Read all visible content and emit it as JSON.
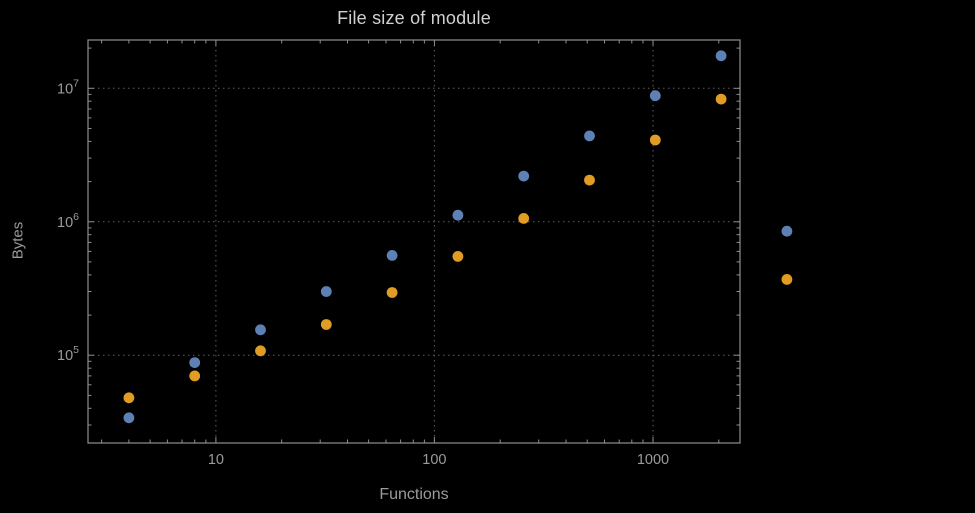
{
  "chart_data": {
    "type": "scatter",
    "title": "File size of module",
    "xlabel": "Functions",
    "ylabel": "Bytes",
    "x_scale": "log",
    "y_scale": "log",
    "xlim": [
      2.6,
      2500
    ],
    "ylim": [
      22000,
      23000000
    ],
    "x_ticks": [
      10,
      100,
      1000
    ],
    "x_tick_labels": [
      "10",
      "100",
      "1000"
    ],
    "y_ticks": [
      100000,
      1000000,
      10000000
    ],
    "y_tick_base": "10",
    "y_tick_exponents": [
      5,
      6,
      7
    ],
    "grid": true,
    "grid_style": "dotted",
    "legend": "none",
    "clip_points": false,
    "background": "#000000",
    "grid_color": "#5e5e5e",
    "frame_color": "#8f8f8f",
    "label_color": "#9b9b9b",
    "title_color": "#d0d0d0",
    "x": [
      4,
      8,
      16,
      32,
      64,
      128,
      256,
      512,
      1024,
      2048,
      4096
    ],
    "series": [
      {
        "name": "series-1-blue",
        "color": "#5e81b5",
        "values": [
          34000,
          88000,
          155000,
          300000,
          560000,
          1120000,
          2200000,
          4400000,
          8800000,
          17500000,
          850000
        ]
      },
      {
        "name": "series-2-orange",
        "color": "#e19c24",
        "values": [
          48000,
          70000,
          108000,
          170000,
          295000,
          550000,
          1060000,
          2050000,
          4100000,
          8300000,
          370000
        ]
      }
    ]
  }
}
